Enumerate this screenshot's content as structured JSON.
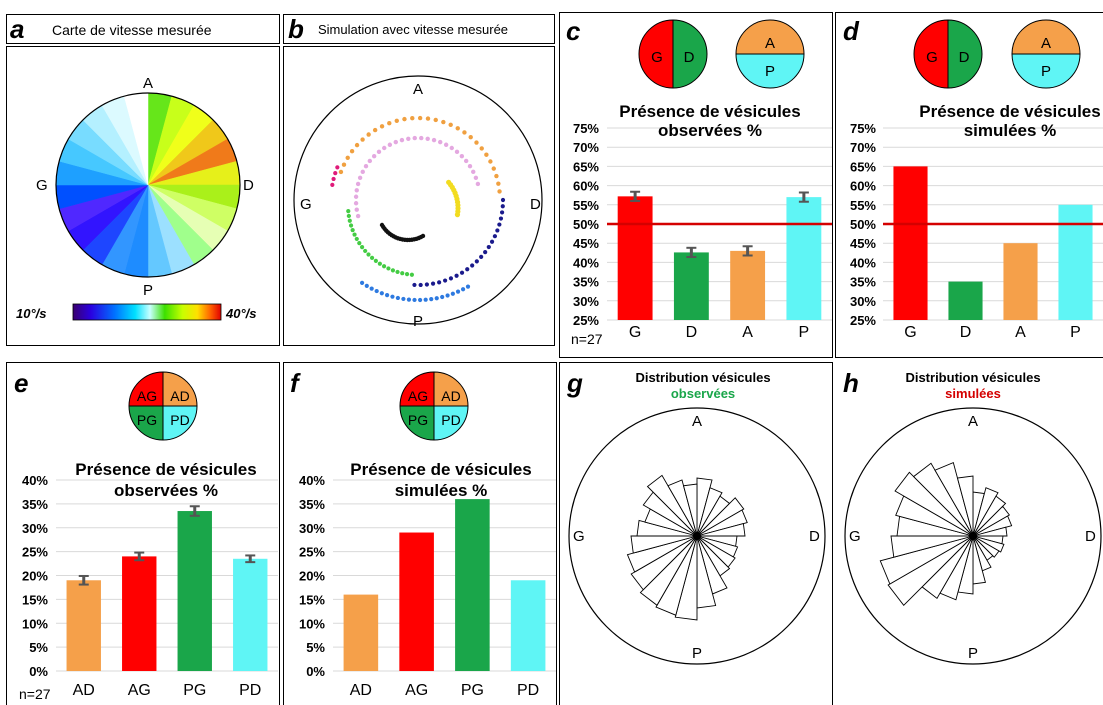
{
  "labels": {
    "a": "a",
    "b": "b",
    "c": "c",
    "d": "d",
    "e": "e",
    "f": "f",
    "g": "g",
    "h": "h"
  },
  "panel_a": {
    "title": "Carte de vitesse mesurée",
    "directions": {
      "top": "A",
      "left": "G",
      "right": "D",
      "bottom": "P"
    },
    "colorbar_min": "10°/s",
    "colorbar_max": "40°/s"
  },
  "panel_b": {
    "title": "Simulation avec vitesse mesurée",
    "directions": {
      "top": "A",
      "left": "G",
      "right": "D",
      "bottom": "P"
    }
  },
  "icons": {
    "g": "G",
    "d": "D",
    "a": "A",
    "p": "P",
    "ag": "AG",
    "ad": "AD",
    "pg": "PG",
    "pd": "PD"
  },
  "colors": {
    "red": "#ff0000",
    "green": "#1aa64a",
    "orange": "#f5a04a",
    "cyan": "#5ff5f5",
    "threshold": "#d40000"
  },
  "chart_data": [
    {
      "id": "c",
      "type": "bar",
      "title": "Présence de vésicules observées %",
      "categories": [
        "G",
        "D",
        "A",
        "P"
      ],
      "values": [
        57.2,
        42.6,
        43.0,
        57.0
      ],
      "errors": [
        1.2,
        1.2,
        1.2,
        1.2
      ],
      "ylim": [
        25,
        75
      ],
      "yticks": [
        "25%",
        "30%",
        "35%",
        "40%",
        "45%",
        "50%",
        "55%",
        "60%",
        "65%",
        "70%",
        "75%"
      ],
      "threshold": 50,
      "n_label": "n=27"
    },
    {
      "id": "d",
      "type": "bar",
      "title": "Présence de vésicules simulées %",
      "categories": [
        "G",
        "D",
        "A",
        "P"
      ],
      "values": [
        65,
        35,
        45,
        55
      ],
      "ylim": [
        25,
        75
      ],
      "yticks": [
        "25%",
        "30%",
        "35%",
        "40%",
        "45%",
        "50%",
        "55%",
        "60%",
        "65%",
        "70%",
        "75%"
      ],
      "threshold": 50
    },
    {
      "id": "e",
      "type": "bar",
      "title": "Présence de vésicules observées %",
      "categories": [
        "AD",
        "AG",
        "PG",
        "PD"
      ],
      "values": [
        19.0,
        24.0,
        33.5,
        23.5
      ],
      "errors": [
        0.9,
        0.8,
        1.0,
        0.7
      ],
      "ylim": [
        0,
        40
      ],
      "yticks": [
        "0%",
        "5%",
        "10%",
        "15%",
        "20%",
        "25%",
        "30%",
        "35%",
        "40%"
      ],
      "n_label": "n=27"
    },
    {
      "id": "f",
      "type": "bar",
      "title": "Présence de vésicules simulées %",
      "categories": [
        "AD",
        "AG",
        "PG",
        "PD"
      ],
      "values": [
        16,
        29,
        36,
        19
      ],
      "ylim": [
        0,
        40
      ],
      "yticks": [
        "0%",
        "5%",
        "10%",
        "15%",
        "20%",
        "25%",
        "30%",
        "35%",
        "40%"
      ]
    },
    {
      "id": "g",
      "type": "rose",
      "title": "Distribution vésicules",
      "subtitle": "observées",
      "directions": {
        "top": "A",
        "left": "G",
        "right": "D",
        "bottom": "P"
      }
    },
    {
      "id": "h",
      "type": "rose",
      "title": "Distribution vésicules",
      "subtitle": "simulées",
      "directions": {
        "top": "A",
        "left": "G",
        "right": "D",
        "bottom": "P"
      }
    }
  ]
}
